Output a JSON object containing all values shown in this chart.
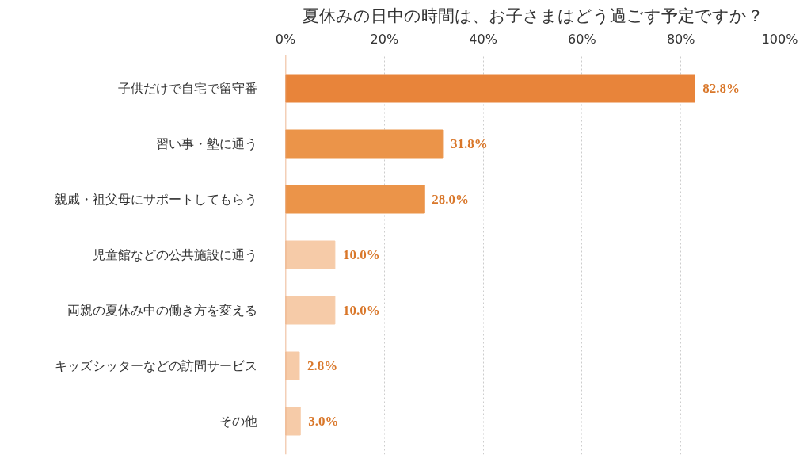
{
  "chart_data": {
    "type": "bar",
    "orientation": "horizontal",
    "title": "夏休みの日中の時間は、お子さまはどう過ごす予定ですか？",
    "categories": [
      "子供だけで自宅で留守番",
      "習い事・塾に通う",
      "親戚・祖父母にサポートしてもらう",
      "児童館などの公共施設に通う",
      "両親の夏休み中の働き方を変える",
      "キッズシッターなどの訪問サービス",
      "その他"
    ],
    "values": [
      82.8,
      31.8,
      28.0,
      10.0,
      10.0,
      2.8,
      3.0
    ],
    "colors": [
      "#e8843a",
      "#eb9449",
      "#eb9449",
      "#f6cba8",
      "#f6cba8",
      "#f6cba8",
      "#f6cba8"
    ],
    "value_labels": [
      "82.8%",
      "31.8%",
      "28.0%",
      "10.0%",
      "10.0%",
      "2.8%",
      "3.0%"
    ],
    "xlim": [
      0,
      100
    ],
    "xticks": [
      {
        "value": 0,
        "label": "0%"
      },
      {
        "value": 20,
        "label": "20%"
      },
      {
        "value": 40,
        "label": "40%"
      },
      {
        "value": 60,
        "label": "60%"
      },
      {
        "value": 80,
        "label": "80%"
      },
      {
        "value": 100,
        "label": "100%"
      }
    ],
    "grid": "x"
  }
}
